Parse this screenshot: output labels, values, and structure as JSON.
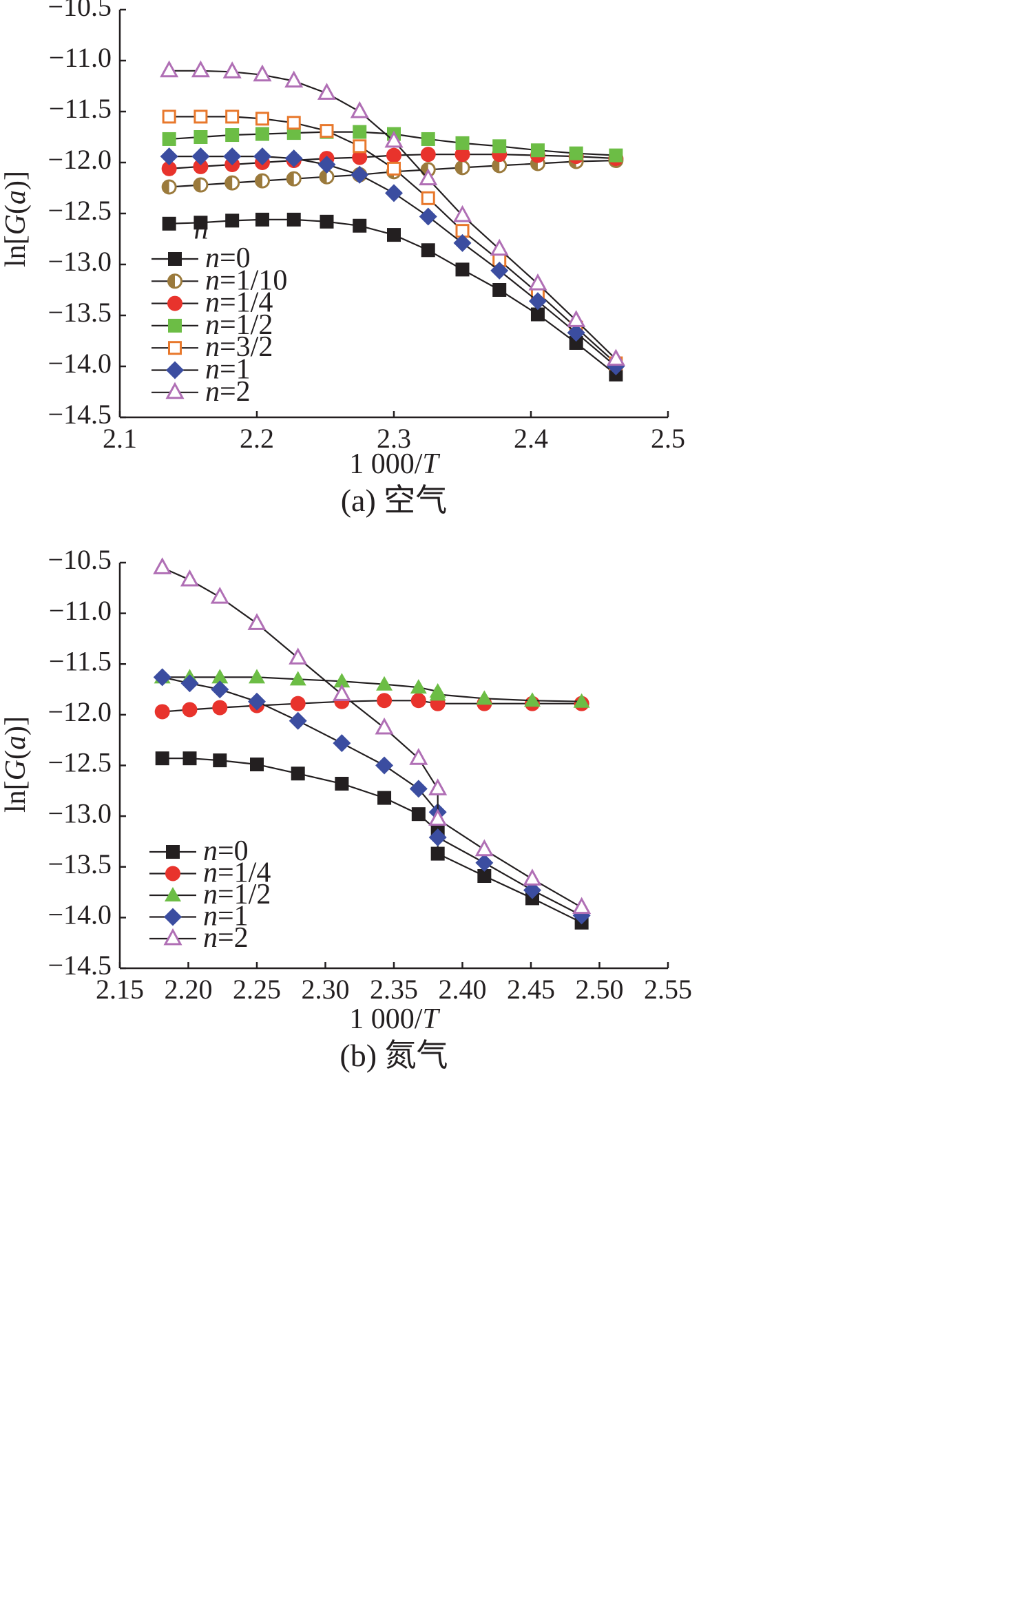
{
  "chart_data": [
    {
      "type": "line",
      "caption": "(a) 空气",
      "xlabel": "1 000/T",
      "ylabel": "ln[G(a)]",
      "xlim": [
        2.1,
        2.5
      ],
      "ylim": [
        -14.5,
        -10.5
      ],
      "xticks": [
        "2.1",
        "2.2",
        "2.3",
        "2.4",
        "2.5"
      ],
      "yticks": [
        "−10.5",
        "−11.0",
        "−11.5",
        "−12.0",
        "−12.5",
        "−13.0",
        "−13.5",
        "−14.0",
        "−14.5"
      ],
      "legend_title": "n",
      "legend_position": "left",
      "grid": false,
      "x": [
        2.136,
        2.159,
        2.182,
        2.204,
        2.227,
        2.251,
        2.275,
        2.3,
        2.325,
        2.35,
        2.377,
        2.405,
        2.433,
        2.462
      ],
      "series": [
        {
          "name": "n=0",
          "marker": "square-filled",
          "color": "#231f20",
          "values": [
            -12.6,
            -12.59,
            -12.57,
            -12.56,
            -12.56,
            -12.58,
            -12.62,
            -12.71,
            -12.86,
            -13.05,
            -13.25,
            -13.49,
            -13.77,
            -14.08
          ]
        },
        {
          "name": "n=1/10",
          "marker": "circle-half",
          "color": "#9b7a3c",
          "values": [
            -12.24,
            -12.22,
            -12.2,
            -12.18,
            -12.16,
            -12.14,
            -12.12,
            -12.09,
            -12.07,
            -12.05,
            -12.03,
            -12.01,
            -11.99,
            -11.98
          ]
        },
        {
          "name": "n=1/4",
          "marker": "circle-filled",
          "color": "#e8332c",
          "values": [
            -12.06,
            -12.04,
            -12.02,
            -12.0,
            -11.98,
            -11.96,
            -11.95,
            -11.93,
            -11.92,
            -11.92,
            -11.92,
            -11.93,
            -11.94,
            -11.96
          ]
        },
        {
          "name": "n=1/2",
          "marker": "square-filled",
          "color": "#6cbd45",
          "values": [
            -11.77,
            -11.75,
            -11.73,
            -11.72,
            -11.71,
            -11.7,
            -11.7,
            -11.72,
            -11.77,
            -11.81,
            -11.84,
            -11.88,
            -11.91,
            -11.93
          ]
        },
        {
          "name": "n=3/2",
          "marker": "square-open",
          "color": "#e8782c",
          "values": [
            -11.55,
            -11.55,
            -11.55,
            -11.57,
            -11.61,
            -11.69,
            -11.84,
            -12.06,
            -12.35,
            -12.67,
            -12.96,
            -13.28,
            -13.62,
            -13.97
          ]
        },
        {
          "name": "n=1",
          "marker": "diamond-filled",
          "color": "#3b4da0",
          "values": [
            -11.94,
            -11.94,
            -11.94,
            -11.94,
            -11.96,
            -12.02,
            -12.12,
            -12.3,
            -12.53,
            -12.79,
            -13.06,
            -13.36,
            -13.67,
            -14.0
          ]
        },
        {
          "name": "n=2",
          "marker": "triangle-open",
          "color": "#b06fb5",
          "values": [
            -11.1,
            -11.1,
            -11.11,
            -11.14,
            -11.2,
            -11.32,
            -11.5,
            -11.79,
            -12.16,
            -12.52,
            -12.85,
            -13.19,
            -13.55,
            -13.93
          ]
        }
      ]
    },
    {
      "type": "line",
      "caption": "(b) 氮气",
      "xlabel": "1 000/T",
      "ylabel": "ln[G(a)]",
      "xlim": [
        2.15,
        2.55
      ],
      "ylim": [
        -14.5,
        -10.5
      ],
      "xticks": [
        "2.15",
        "2.20",
        "2.25",
        "2.30",
        "2.35",
        "2.40",
        "2.45",
        "2.50",
        "2.55"
      ],
      "yticks": [
        "−10.5",
        "−11.0",
        "−11.5",
        "−12.0",
        "−12.5",
        "−13.0",
        "−13.5",
        "−14.0",
        "−14.5"
      ],
      "legend_position": "bottom-left",
      "grid": false,
      "x": [
        2.181,
        2.201,
        2.223,
        2.25,
        2.28,
        2.312,
        2.343,
        2.368,
        2.382,
        2.382,
        2.416,
        2.451,
        2.487
      ],
      "series": [
        {
          "name": "n=0",
          "marker": "square-filled",
          "color": "#231f20",
          "values": [
            -12.43,
            -12.43,
            -12.45,
            -12.49,
            -12.58,
            -12.68,
            -12.82,
            -12.98,
            -13.15,
            -13.37,
            -13.59,
            -13.81,
            -14.05
          ]
        },
        {
          "name": "n=1/4",
          "marker": "circle-filled",
          "color": "#e8332c",
          "values": [
            -11.97,
            -11.95,
            -11.93,
            -11.91,
            -11.89,
            -11.87,
            -11.86,
            -11.86,
            -11.89,
            -11.89,
            -11.89,
            -11.89,
            -11.89
          ]
        },
        {
          "name": "n=1/2",
          "marker": "triangle-filled",
          "color": "#6cbd45",
          "values": [
            -11.63,
            -11.63,
            -11.63,
            -11.63,
            -11.65,
            -11.67,
            -11.7,
            -11.73,
            -11.77,
            -11.8,
            -11.84,
            -11.86,
            -11.87
          ]
        },
        {
          "name": "n=1",
          "marker": "diamond-filled",
          "color": "#3b4da0",
          "values": [
            -11.63,
            -11.69,
            -11.75,
            -11.87,
            -12.06,
            -12.28,
            -12.5,
            -12.73,
            -12.96,
            -13.21,
            -13.46,
            -13.73,
            -13.98
          ]
        },
        {
          "name": "n=2",
          "marker": "triangle-open",
          "color": "#b06fb5",
          "values": [
            -10.55,
            -10.67,
            -10.84,
            -11.1,
            -11.44,
            -11.8,
            -12.13,
            -12.43,
            -12.73,
            -13.03,
            -13.33,
            -13.62,
            -13.9
          ]
        }
      ]
    }
  ]
}
